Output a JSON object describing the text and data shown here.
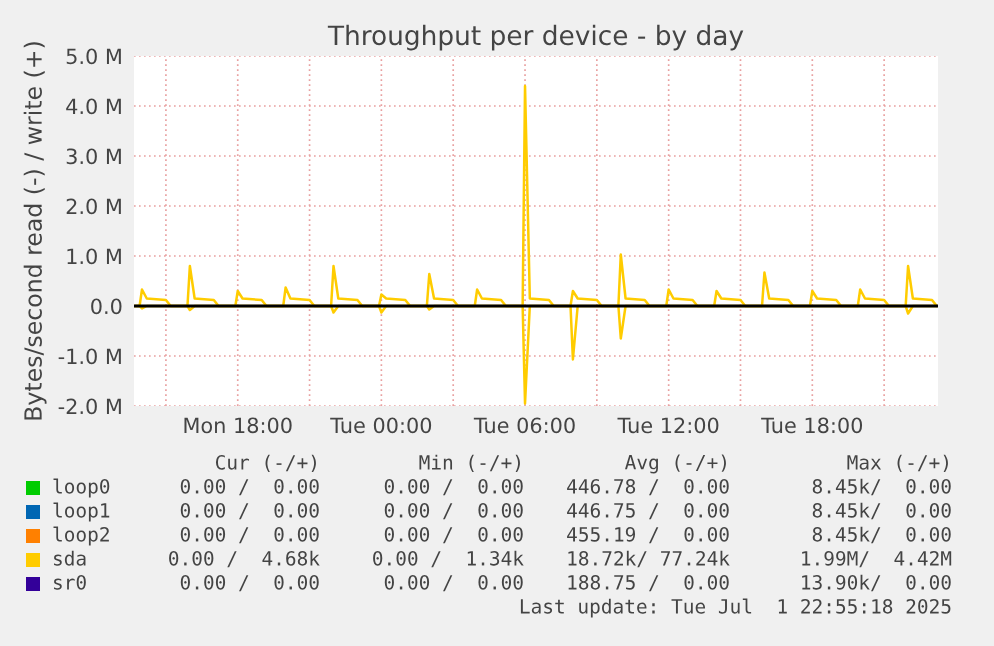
{
  "chart_data": {
    "type": "line",
    "title": "Throughput per device - by day",
    "ylabel": "Bytes/second read (-) / write (+)",
    "x": [
      "2025-06-30T13:42",
      "2025-06-30T13:54",
      "2025-06-30T14:00",
      "2025-06-30T14:12",
      "2025-06-30T15:00",
      "2025-06-30T15:12",
      "2025-06-30T15:54",
      "2025-06-30T16:00",
      "2025-06-30T16:12",
      "2025-06-30T17:00",
      "2025-06-30T17:12",
      "2025-06-30T17:54",
      "2025-06-30T18:00",
      "2025-06-30T18:12",
      "2025-06-30T19:00",
      "2025-06-30T19:12",
      "2025-06-30T19:54",
      "2025-06-30T20:00",
      "2025-06-30T20:12",
      "2025-06-30T21:00",
      "2025-06-30T21:12",
      "2025-06-30T21:54",
      "2025-06-30T22:00",
      "2025-06-30T22:12",
      "2025-06-30T23:00",
      "2025-06-30T23:12",
      "2025-06-30T23:54",
      "2025-07-01T00:00",
      "2025-07-01T00:12",
      "2025-07-01T01:00",
      "2025-07-01T01:12",
      "2025-07-01T01:54",
      "2025-07-01T02:00",
      "2025-07-01T02:12",
      "2025-07-01T03:00",
      "2025-07-01T03:12",
      "2025-07-01T03:54",
      "2025-07-01T04:00",
      "2025-07-01T04:12",
      "2025-07-01T05:00",
      "2025-07-01T05:12",
      "2025-07-01T05:54",
      "2025-07-01T06:00",
      "2025-07-01T06:12",
      "2025-07-01T07:00",
      "2025-07-01T07:12",
      "2025-07-01T07:54",
      "2025-07-01T08:00",
      "2025-07-01T08:12",
      "2025-07-01T09:00",
      "2025-07-01T09:12",
      "2025-07-01T09:54",
      "2025-07-01T10:00",
      "2025-07-01T10:12",
      "2025-07-01T11:00",
      "2025-07-01T11:12",
      "2025-07-01T11:54",
      "2025-07-01T12:00",
      "2025-07-01T12:12",
      "2025-07-01T13:00",
      "2025-07-01T13:12",
      "2025-07-01T13:54",
      "2025-07-01T14:00",
      "2025-07-01T14:12",
      "2025-07-01T15:00",
      "2025-07-01T15:12",
      "2025-07-01T15:54",
      "2025-07-01T16:00",
      "2025-07-01T16:12",
      "2025-07-01T17:00",
      "2025-07-01T17:12",
      "2025-07-01T17:54",
      "2025-07-01T18:00",
      "2025-07-01T18:12",
      "2025-07-01T19:00",
      "2025-07-01T19:12",
      "2025-07-01T19:54",
      "2025-07-01T20:00",
      "2025-07-01T20:12",
      "2025-07-01T21:00",
      "2025-07-01T21:12",
      "2025-07-01T21:54",
      "2025-07-01T22:00",
      "2025-07-01T22:12",
      "2025-07-01T23:00",
      "2025-07-01T23:12"
    ],
    "series": [
      {
        "name": "loop0",
        "color": "#00cc00",
        "values": [
          null,
          null,
          null,
          null,
          null,
          null,
          null,
          null,
          null,
          null,
          null,
          null,
          null,
          null,
          null,
          null,
          null,
          null,
          null,
          null,
          null,
          null,
          null,
          null,
          null,
          null,
          null,
          null,
          null,
          null,
          null,
          null,
          null,
          null,
          null,
          null,
          null,
          null,
          null,
          null,
          null,
          null,
          null,
          null,
          null,
          null,
          null,
          null,
          null,
          null,
          null,
          null,
          null,
          null,
          null,
          null,
          null,
          null,
          null,
          null,
          null,
          null,
          null,
          null,
          null,
          null,
          null,
          null,
          null,
          null,
          null,
          null,
          null,
          null,
          null,
          null,
          null,
          null,
          null,
          null,
          null,
          null,
          null,
          null,
          null,
          null
        ]
      },
      {
        "name": "loop1",
        "color": "#0066b3",
        "values": [
          null,
          null,
          null,
          null,
          null,
          null,
          null,
          null,
          null,
          null,
          null,
          null,
          null,
          null,
          null,
          null,
          null,
          null,
          null,
          null,
          null,
          null,
          null,
          null,
          null,
          null,
          null,
          null,
          null,
          null,
          null,
          null,
          null,
          null,
          null,
          null,
          null,
          null,
          null,
          null,
          null,
          null,
          null,
          null,
          null,
          null,
          null,
          null,
          null,
          null,
          null,
          null,
          null,
          null,
          null,
          null,
          null,
          null,
          null,
          null,
          null,
          null,
          null,
          null,
          null,
          null,
          null,
          null,
          null,
          null,
          null,
          null,
          null,
          null,
          null,
          null,
          null,
          null,
          null,
          null,
          null,
          null,
          null,
          null,
          null,
          null
        ]
      },
      {
        "name": "loop2",
        "color": "#ff8000",
        "values": [
          null,
          null,
          null,
          null,
          null,
          null,
          null,
          null,
          null,
          null,
          null,
          null,
          null,
          null,
          null,
          null,
          null,
          null,
          null,
          null,
          null,
          null,
          null,
          null,
          null,
          null,
          null,
          null,
          null,
          null,
          null,
          null,
          null,
          null,
          null,
          null,
          null,
          null,
          null,
          null,
          null,
          null,
          null,
          null,
          null,
          null,
          null,
          null,
          null,
          null,
          null,
          null,
          null,
          null,
          null,
          null,
          null,
          null,
          null,
          null,
          null,
          null,
          null,
          null,
          null,
          null,
          null,
          null,
          null,
          null,
          null,
          null,
          null,
          null,
          null,
          null,
          null,
          null,
          null,
          null,
          null,
          null,
          null,
          null,
          null,
          null
        ]
      },
      {
        "name": "sr0",
        "color": "#330099",
        "values": [
          null,
          null,
          null,
          null,
          null,
          null,
          null,
          null,
          null,
          null,
          null,
          null,
          null,
          null,
          null,
          null,
          null,
          null,
          null,
          null,
          null,
          null,
          null,
          null,
          null,
          null,
          null,
          null,
          null,
          null,
          null,
          null,
          null,
          null,
          null,
          null,
          null,
          null,
          null,
          null,
          null,
          null,
          null,
          null,
          null,
          null,
          null,
          null,
          null,
          null,
          null,
          null,
          null,
          null,
          null,
          null,
          null,
          null,
          null,
          null,
          null,
          null,
          null,
          null,
          null,
          null,
          null,
          null,
          null,
          null,
          null,
          null,
          null,
          null,
          null,
          null,
          null,
          null,
          null,
          null,
          null,
          null,
          null,
          null,
          null,
          null
        ]
      },
      {
        "color": "#ffcc00",
        "values": [
          0,
          0,
          -0.05,
          0,
          0,
          0,
          0,
          -0.08,
          0,
          0,
          0,
          0,
          0,
          0,
          0,
          0,
          0,
          0,
          0,
          0,
          0,
          0,
          -0.13,
          0,
          0,
          0,
          0,
          -0.13,
          0,
          0,
          0,
          0,
          -0.07,
          0,
          0,
          0,
          0,
          0,
          0,
          0,
          0,
          0,
          -1.95,
          0,
          0,
          0,
          0,
          -1.07,
          0,
          0,
          0,
          0,
          -0.65,
          0,
          0,
          0,
          0,
          0,
          0,
          0,
          0,
          0,
          0,
          0,
          0,
          0,
          0,
          0,
          0,
          0,
          0,
          0,
          0,
          0,
          0,
          0,
          0,
          0,
          0,
          0,
          0,
          0,
          -0.15,
          0,
          0,
          0
        ]
      },
      {
        "name": "sda",
        "color": "#ffcc00",
        "values": [
          0,
          0,
          0.33,
          0.15,
          0.12,
          0,
          0,
          0.8,
          0.15,
          0.12,
          0,
          0,
          0.3,
          0.15,
          0.12,
          0,
          0,
          0.37,
          0.15,
          0.12,
          0,
          0,
          0.8,
          0.15,
          0.12,
          0,
          0,
          0.23,
          0.15,
          0.12,
          0,
          0,
          0.64,
          0.15,
          0.12,
          0,
          0,
          0.33,
          0.15,
          0.12,
          0,
          0,
          4.4,
          0.15,
          0.12,
          0,
          0,
          0.3,
          0.15,
          0.12,
          0,
          0,
          1.03,
          0.15,
          0.12,
          0,
          0,
          0.33,
          0.15,
          0.12,
          0,
          0,
          0.3,
          0.15,
          0.12,
          0,
          0,
          0.67,
          0.15,
          0.12,
          0,
          0,
          0.3,
          0.15,
          0.12,
          0,
          0,
          0.33,
          0.15,
          0.12,
          0,
          0,
          0.8,
          0.15,
          0.12,
          0
        ]
      }
    ],
    "xlim": [
      "2025-06-30T13:40",
      "2025-07-01T23:15"
    ],
    "xticks": [
      {
        "value": "2025-06-30T15:00",
        "label": null
      },
      {
        "value": "2025-06-30T18:00",
        "label": "Mon 18:00"
      },
      {
        "value": "2025-06-30T21:00",
        "label": null
      },
      {
        "value": "2025-07-01T00:00",
        "label": "Tue 00:00"
      },
      {
        "value": "2025-07-01T03:00",
        "label": null
      },
      {
        "value": "2025-07-01T06:00",
        "label": "Tue 06:00"
      },
      {
        "value": "2025-07-01T09:00",
        "label": null
      },
      {
        "value": "2025-07-01T12:00",
        "label": "Tue 12:00"
      },
      {
        "value": "2025-07-01T15:00",
        "label": null
      },
      {
        "value": "2025-07-01T18:00",
        "label": "Tue 18:00"
      },
      {
        "value": "2025-07-01T21:00",
        "label": null
      }
    ],
    "ylim": [
      -2,
      5
    ],
    "yticks": [
      {
        "value": -2,
        "label": "-2.0 M"
      },
      {
        "value": -1,
        "label": "-1.0 M"
      },
      {
        "value": 0,
        "label": "0.0"
      },
      {
        "value": 1,
        "label": "1.0 M"
      },
      {
        "value": 2,
        "label": "2.0 M"
      },
      {
        "value": 3,
        "label": "3.0 M"
      },
      {
        "value": 4,
        "label": "4.0 M"
      },
      {
        "value": 5,
        "label": "5.0 M"
      }
    ],
    "ref_lines": [
      {
        "axis": "y",
        "value": 0,
        "color": "#000000"
      }
    ],
    "grid": true,
    "legend": "bottom",
    "annotations": [
      "Cur (-/+)",
      "Min (-/+)",
      "Avg (-/+)",
      "Max (-/+)",
      "0.00 /  0.00",
      "0.00 /  0.00",
      "446.78 /  0.00",
      "8.45k/  0.00",
      "0.00 /  0.00",
      "0.00 /  0.00",
      "446.75 /  0.00",
      "8.45k/  0.00",
      "0.00 /  0.00",
      "0.00 /  0.00",
      "455.19 /  0.00",
      "8.45k/  0.00",
      "0.00 /  4.68k",
      "0.00 /  1.34k",
      "18.72k/ 77.24k",
      "1.99M/  4.42M",
      "0.00 /  0.00",
      "0.00 /  0.00",
      "188.75 /  0.00",
      "13.90k/  0.00",
      "Last update: Tue Jul  1 22:55:18 2025"
    ]
  }
}
